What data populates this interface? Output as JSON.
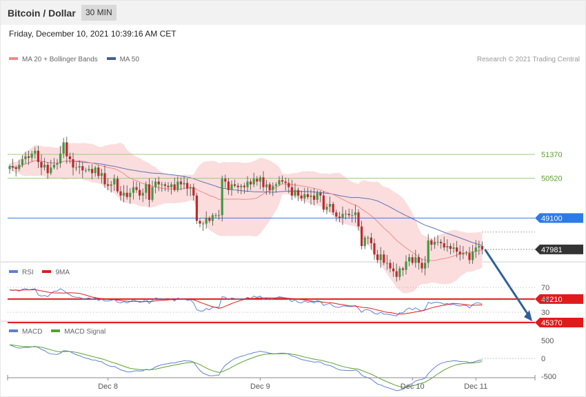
{
  "header": {
    "title": "Bitcoin / Dollar",
    "timeframe": "30 MIN"
  },
  "datetime": "Friday, December 10, 2021 10:39:16 AM CET",
  "credit": "Research © 2021 Trading Central",
  "legends": {
    "main": [
      {
        "label": "MA 20 + Bollinger Bands",
        "color": "#f08a8a"
      },
      {
        "label": "MA 50",
        "color": "#3e5f9a"
      }
    ],
    "rsi": [
      {
        "label": "RSI",
        "color": "#5b7fd6"
      },
      {
        "label": "9MA",
        "color": "#e01b1b"
      }
    ],
    "macd": [
      {
        "label": "MACD",
        "color": "#5b7fd6"
      },
      {
        "label": "MACD Signal",
        "color": "#5aa02c"
      }
    ]
  },
  "colors": {
    "up": "#3f9a3f",
    "down": "#c0282a",
    "bollinger_fill": "#fbd9d9",
    "ma20": "#f08a8a",
    "ma50": "#5b73b8",
    "resistance_green": "#9ccc73",
    "pivot_blue": "#2f7be6",
    "support_red": "#e01b1b",
    "current_price": "#333333",
    "arrow": "#2e5f9a"
  },
  "chart_data": [
    {
      "type": "candlestick",
      "panel": "price",
      "instrument": "Bitcoin / Dollar",
      "timeframe": "30 MIN",
      "ylim": [
        44800,
        53000
      ],
      "x_ticks": [
        "Dec 8",
        "Dec 9",
        "Dec 10",
        "Dec 11"
      ],
      "x_tick_index": [
        31,
        79,
        127,
        147
      ],
      "n_bars": 150,
      "close": [
        50950,
        50900,
        50850,
        51000,
        51200,
        51300,
        51250,
        51400,
        51500,
        51100,
        50900,
        51000,
        50700,
        50900,
        51000,
        51050,
        51400,
        51800,
        51300,
        51200,
        50900,
        50900,
        50950,
        50800,
        50800,
        50850,
        50700,
        50900,
        50600,
        50700,
        50300,
        50250,
        50300,
        50500,
        50050,
        49900,
        50000,
        49850,
        50000,
        50200,
        50100,
        49900,
        50000,
        50300,
        49750,
        50200,
        50400,
        50300,
        50300,
        50250,
        50200,
        50300,
        50100,
        50400,
        50300,
        50350,
        50150,
        50200,
        49900,
        49000,
        48900,
        48900,
        49100,
        49000,
        49200,
        49200,
        49200,
        50500,
        50400,
        50100,
        50300,
        50250,
        50200,
        50250,
        50200,
        50400,
        50300,
        50500,
        50400,
        50550,
        50200,
        50300,
        50100,
        50250,
        50300,
        50450,
        50400,
        50350,
        50200,
        49900,
        50100,
        49900,
        49800,
        49950,
        49850,
        49900,
        49750,
        50000,
        49900,
        49400,
        49500,
        49600,
        49300,
        49150,
        49100,
        49250,
        49250,
        49200,
        49200,
        49300,
        48800,
        48100,
        48400,
        48400,
        48200,
        47800,
        47600,
        47800,
        47500,
        47500,
        47300,
        47200,
        47000,
        47300,
        47250,
        47550,
        47700,
        47500,
        47700,
        47500,
        47300,
        47500,
        48300,
        48150,
        48250,
        48250,
        48200,
        48050,
        48100,
        48000,
        48050,
        47900,
        47800,
        47850,
        47850,
        47600,
        47900,
        48050,
        48100,
        47981
      ],
      "levels": [
        {
          "label": "51370",
          "value": 51370,
          "type": "resistance"
        },
        {
          "label": "50520",
          "value": 50520,
          "type": "resistance"
        },
        {
          "label": "49100",
          "value": 49100,
          "type": "pivot"
        },
        {
          "label": "47981",
          "value": 47981,
          "type": "last price"
        },
        {
          "label": "46210",
          "value": 46210,
          "type": "support"
        },
        {
          "label": "45370",
          "value": 45370,
          "type": "support"
        }
      ],
      "forecast_arrow": {
        "from": 47981,
        "to": 45370
      }
    },
    {
      "type": "line",
      "panel": "rsi",
      "series": [
        {
          "name": "RSI"
        },
        {
          "name": "9MA"
        }
      ],
      "ylim": [
        20,
        80
      ],
      "y_ticks": [
        70,
        50,
        30
      ],
      "values": [
        66,
        65,
        66,
        64,
        67,
        68,
        66,
        67,
        68,
        58,
        56,
        57,
        55,
        60,
        64,
        64,
        68,
        65,
        61,
        58,
        55,
        54,
        54,
        52,
        52,
        53,
        51,
        53,
        49,
        51,
        48,
        48,
        49,
        51,
        46,
        45,
        47,
        45,
        47,
        50,
        48,
        46,
        47,
        51,
        44,
        49,
        53,
        52,
        52,
        51,
        50,
        52,
        48,
        53,
        51,
        52,
        49,
        50,
        45,
        34,
        32,
        32,
        36,
        34,
        38,
        38,
        38,
        55,
        54,
        50,
        53,
        52,
        51,
        52,
        51,
        54,
        52,
        56,
        54,
        56,
        51,
        53,
        50,
        52,
        53,
        55,
        54,
        53,
        51,
        47,
        50,
        46,
        45,
        48,
        46,
        47,
        45,
        49,
        47,
        41,
        43,
        44,
        40,
        38,
        38,
        40,
        40,
        39,
        39,
        41,
        36,
        30,
        34,
        34,
        32,
        28,
        27,
        30,
        27,
        27,
        26,
        25,
        24,
        29,
        29,
        34,
        37,
        34,
        37,
        34,
        32,
        35,
        46,
        44,
        46,
        46,
        45,
        43,
        44,
        42,
        43,
        41,
        40,
        41,
        41,
        37,
        42,
        45,
        45,
        43
      ]
    },
    {
      "type": "line",
      "panel": "macd",
      "series": [
        {
          "name": "MACD"
        },
        {
          "name": "MACD Signal"
        }
      ],
      "ylim": [
        -750,
        800
      ],
      "y_ticks": [
        500,
        0,
        -500
      ]
    }
  ]
}
